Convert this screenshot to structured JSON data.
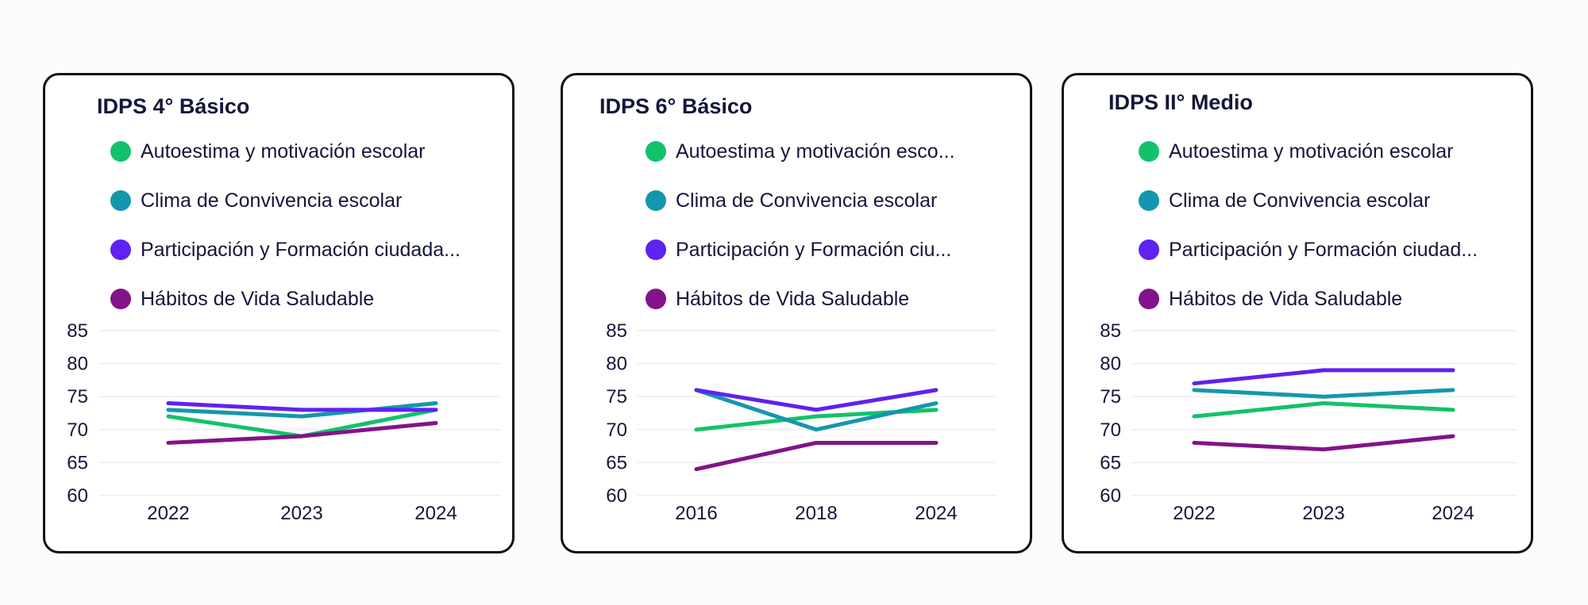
{
  "colors": {
    "autoestima": "#12c26b",
    "clima": "#1497ad",
    "participacion": "#5f22f0",
    "habitos": "#82138a"
  },
  "chart_data": [
    {
      "type": "line",
      "title": "IDPS 4° Básico",
      "categories": [
        "2022",
        "2023",
        "2024"
      ],
      "ylim": [
        60,
        85
      ],
      "yticks": [
        "85",
        "80",
        "75",
        "70",
        "65",
        "60"
      ],
      "legend_position": "top",
      "series": [
        {
          "name": "Autoestima y motivación escolar",
          "values": [
            72,
            69,
            73
          ]
        },
        {
          "name": "Clima de Convivencia escolar",
          "values": [
            73,
            72,
            74
          ]
        },
        {
          "name": "Participación y Formación ciudada...",
          "values": [
            74,
            73,
            73
          ]
        },
        {
          "name": "Hábitos de Vida Saludable",
          "values": [
            68,
            69,
            71
          ]
        }
      ]
    },
    {
      "type": "line",
      "title": "IDPS 6° Básico",
      "categories": [
        "2016",
        "2018",
        "2024"
      ],
      "ylim": [
        60,
        85
      ],
      "yticks": [
        "85",
        "80",
        "75",
        "70",
        "65",
        "60"
      ],
      "legend_position": "top",
      "series": [
        {
          "name": "Autoestima y motivación esco...",
          "values": [
            70,
            72,
            73
          ]
        },
        {
          "name": "Clima de Convivencia escolar",
          "values": [
            76,
            70,
            74
          ]
        },
        {
          "name": "Participación y Formación ciu...",
          "values": [
            76,
            73,
            76
          ]
        },
        {
          "name": "Hábitos de Vida Saludable",
          "values": [
            64,
            68,
            68
          ]
        }
      ]
    },
    {
      "type": "line",
      "title": "IDPS II° Medio",
      "categories": [
        "2022",
        "2023",
        "2024"
      ],
      "ylim": [
        60,
        85
      ],
      "yticks": [
        "85",
        "80",
        "75",
        "70",
        "65",
        "60"
      ],
      "legend_position": "top",
      "series": [
        {
          "name": "Autoestima y motivación escolar",
          "values": [
            72,
            74,
            73
          ]
        },
        {
          "name": "Clima de Convivencia escolar",
          "values": [
            76,
            75,
            76
          ]
        },
        {
          "name": "Participación y Formación ciudad...",
          "values": [
            77,
            79,
            79
          ]
        },
        {
          "name": "Hábitos de Vida Saludable",
          "values": [
            68,
            67,
            69
          ]
        }
      ]
    }
  ]
}
